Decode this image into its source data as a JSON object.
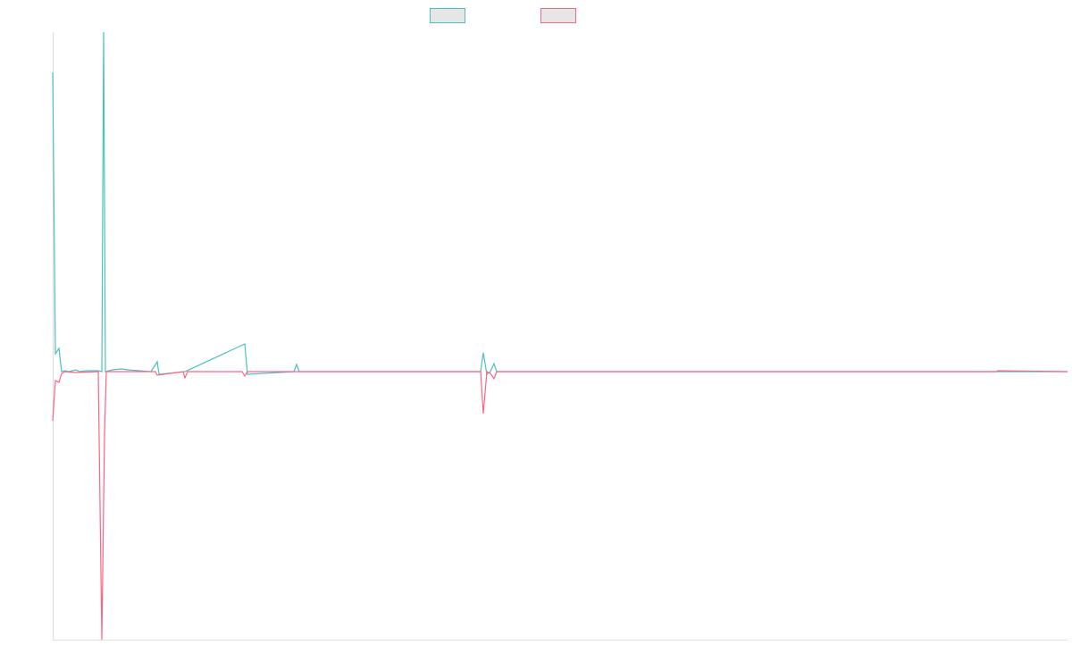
{
  "chart_data": {
    "type": "line",
    "xlim": [
      0,
      1136
    ],
    "ylim": [
      -300,
      380
    ],
    "series": [
      {
        "color": "#4bc0c0",
        "x": [
          0,
          3,
          7,
          10,
          14,
          18,
          26,
          30,
          38,
          51,
          55,
          57,
          59,
          67,
          77,
          84,
          110,
          117,
          119,
          148,
          215,
          218,
          270,
          273,
          276,
          479,
          482,
          486,
          490,
          494,
          497,
          1136
        ],
        "values": [
          335,
          20,
          26,
          0,
          1,
          0,
          2,
          0,
          1,
          1,
          0,
          380,
          0,
          2,
          3,
          2,
          0,
          11,
          -3,
          0,
          31,
          -3,
          0,
          8,
          0,
          0,
          21,
          -3,
          0,
          9,
          0,
          0
        ]
      },
      {
        "color": "#ff6384",
        "x": [
          0,
          3,
          7,
          10,
          14,
          26,
          51,
          55,
          58,
          60,
          115,
          117,
          146,
          148,
          151,
          212,
          215,
          218,
          479,
          482,
          486,
          490,
          494,
          497,
          1056,
          1058,
          1136
        ],
        "values": [
          -55,
          -10,
          -12,
          -2,
          0,
          -1,
          0,
          -300,
          -70,
          0,
          0,
          -4,
          0,
          -7,
          0,
          0,
          -5,
          0,
          0,
          -47,
          0,
          -2,
          -8,
          0,
          0,
          1,
          0
        ]
      }
    ]
  }
}
